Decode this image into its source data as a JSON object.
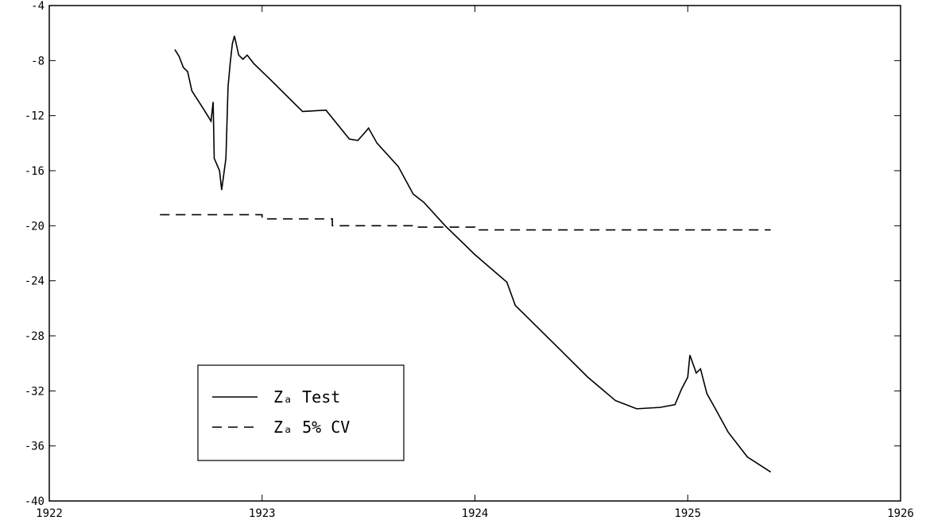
{
  "chart_data": {
    "type": "line",
    "xlim": [
      1922,
      1926
    ],
    "xticks": [
      1922,
      1923,
      1924,
      1925,
      1926
    ],
    "ylim": [
      -40,
      -4
    ],
    "yticks": [
      -40,
      -36,
      -32,
      -28,
      -24,
      -20,
      -16,
      -12,
      -8,
      -4
    ],
    "legend": "lower left",
    "series": [
      {
        "name": "Zₐ Test",
        "color": "#000000",
        "dash": "solid",
        "x": [
          1922.59,
          1922.61,
          1922.63,
          1922.65,
          1922.67,
          1922.72,
          1922.76,
          1922.77,
          1922.775,
          1922.8,
          1922.81,
          1922.83,
          1922.84,
          1922.85,
          1922.86,
          1922.87,
          1922.89,
          1922.91,
          1922.93,
          1922.96,
          1923.04,
          1923.19,
          1923.3,
          1923.41,
          1923.45,
          1923.49,
          1923.5,
          1923.54,
          1923.64,
          1923.71,
          1923.76,
          1923.86,
          1924.0,
          1924.15,
          1924.19,
          1924.23,
          1924.4,
          1924.53,
          1924.66,
          1924.76,
          1924.87,
          1924.94,
          1924.97,
          1925.0,
          1925.01,
          1925.04,
          1925.06,
          1925.09,
          1925.13,
          1925.19,
          1925.28,
          1925.39
        ],
        "values": [
          -7.2,
          -7.7,
          -8.5,
          -8.8,
          -10.2,
          -11.4,
          -12.4,
          -11.0,
          -15.1,
          -16.0,
          -17.4,
          -15.1,
          -9.9,
          -8.2,
          -6.8,
          -6.2,
          -7.6,
          -7.9,
          -7.6,
          -8.2,
          -9.4,
          -11.7,
          -11.6,
          -13.7,
          -13.8,
          -13.1,
          -12.9,
          -14.0,
          -15.7,
          -17.7,
          -18.3,
          -20.0,
          -22.1,
          -24.1,
          -25.8,
          -26.4,
          -29.0,
          -31.0,
          -32.7,
          -33.3,
          -33.2,
          -33.0,
          -31.9,
          -31.0,
          -29.4,
          -30.7,
          -30.4,
          -32.2,
          -33.3,
          -35.0,
          -36.8,
          -37.9
        ]
      },
      {
        "name": "Zₐ 5% CV",
        "color": "#000000",
        "dash": "dashed",
        "x": [
          1922.52,
          1923.0,
          1923.0,
          1923.33,
          1923.33,
          1923.72,
          1923.72,
          1924.0,
          1924.0,
          1925.39
        ],
        "values": [
          -19.2,
          -19.2,
          -19.5,
          -19.5,
          -20.0,
          -20.0,
          -20.1,
          -20.1,
          -20.3,
          -20.3
        ]
      }
    ]
  }
}
